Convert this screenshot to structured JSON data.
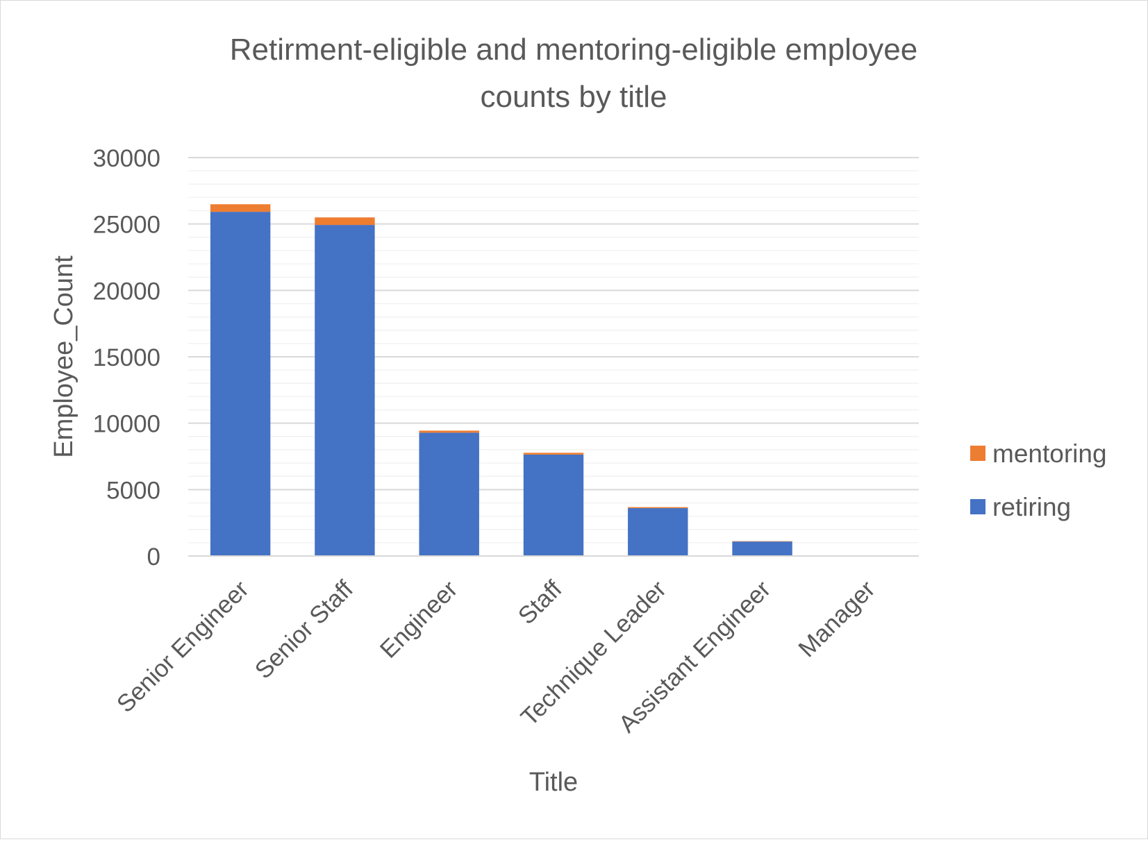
{
  "chart_data": {
    "type": "bar",
    "stacked": true,
    "title_lines": [
      "Retirment-eligible and mentoring-eligible employee",
      "counts by title"
    ],
    "xlabel": "Title",
    "ylabel": "Employee_Count",
    "ylim": [
      0,
      30000
    ],
    "yticks": [
      0,
      5000,
      10000,
      15000,
      20000,
      25000,
      30000
    ],
    "grid": true,
    "legend_position": "right",
    "categories": [
      "Senior Engineer",
      "Senior Staff",
      "Engineer",
      "Staff",
      "Technique Leader",
      "Assistant Engineer",
      "Manager"
    ],
    "series": [
      {
        "name": "retiring",
        "color": "#4472c4",
        "values": [
          25916,
          24926,
          9285,
          7636,
          3603,
          1090,
          2
        ]
      },
      {
        "name": "mentoring",
        "color": "#ed7d31",
        "values": [
          569,
          569,
          155,
          137,
          77,
          29,
          0
        ]
      }
    ],
    "legend_order": [
      "mentoring",
      "retiring"
    ]
  }
}
